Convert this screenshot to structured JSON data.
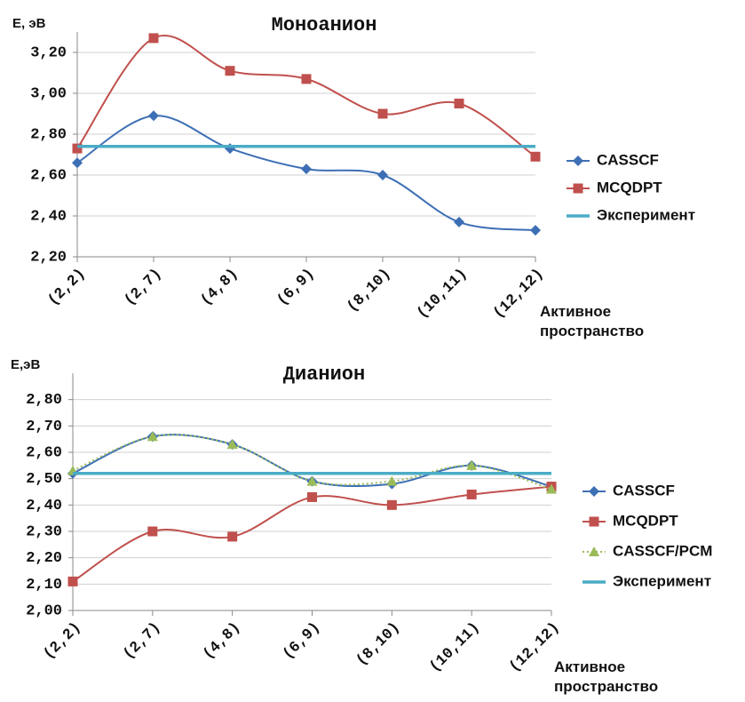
{
  "chart_data": [
    {
      "type": "line",
      "title": "Моноанион",
      "y_label": "E, эВ",
      "x_label": "Активное пространство",
      "smooth": true,
      "grid": true,
      "categories": [
        "(2,2)",
        "(2,7)",
        "(4,8)",
        "(6,9)",
        "(8,10)",
        "(10,11)",
        "(12,12)"
      ],
      "ylim": [
        2.2,
        3.3
      ],
      "yticks": [
        {
          "value": 2.2,
          "label": "2,20"
        },
        {
          "value": 2.4,
          "label": "2,40"
        },
        {
          "value": 2.6,
          "label": "2,60"
        },
        {
          "value": 2.8,
          "label": "2,80"
        },
        {
          "value": 3.0,
          "label": "3,00"
        },
        {
          "value": 3.2,
          "label": "3,20"
        }
      ],
      "series": [
        {
          "name": "CASSCF",
          "color": "#3d6fb5",
          "marker": "diamond",
          "values": [
            2.66,
            2.89,
            2.73,
            2.63,
            2.6,
            2.37,
            2.33
          ]
        },
        {
          "name": "MCQDPT",
          "color": "#c0504d",
          "marker": "square",
          "values": [
            2.73,
            3.27,
            3.11,
            3.07,
            2.9,
            2.95,
            2.69
          ]
        },
        {
          "name": "Эксперимент",
          "color": "#4bacc6",
          "marker": "none",
          "values": [
            2.74,
            2.74,
            2.74,
            2.74,
            2.74,
            2.74,
            2.74
          ]
        }
      ]
    },
    {
      "type": "line",
      "title": "Дианион",
      "y_label": "E,эВ",
      "x_label": "Активное пространство",
      "smooth": true,
      "grid": true,
      "categories": [
        "(2,2)",
        "(2,7)",
        "(4,8)",
        "(6,9)",
        "(8,10)",
        "(10,11)",
        "(12,12)"
      ],
      "ylim": [
        2.0,
        2.9
      ],
      "yticks": [
        {
          "value": 2.0,
          "label": "2,00"
        },
        {
          "value": 2.1,
          "label": "2,10"
        },
        {
          "value": 2.2,
          "label": "2,20"
        },
        {
          "value": 2.3,
          "label": "2,30"
        },
        {
          "value": 2.4,
          "label": "2,40"
        },
        {
          "value": 2.5,
          "label": "2,50"
        },
        {
          "value": 2.6,
          "label": "2,60"
        },
        {
          "value": 2.7,
          "label": "2,70"
        },
        {
          "value": 2.8,
          "label": "2,80"
        }
      ],
      "series": [
        {
          "name": "CASSCF",
          "color": "#3d6fb5",
          "marker": "diamond",
          "values": [
            2.52,
            2.66,
            2.63,
            2.49,
            2.48,
            2.55,
            2.47
          ]
        },
        {
          "name": "MCQDPT",
          "color": "#c0504d",
          "marker": "square",
          "values": [
            2.11,
            2.3,
            2.28,
            2.43,
            2.4,
            2.44,
            2.47
          ]
        },
        {
          "name": "CASSCF/PCM",
          "color": "#9bbb59",
          "marker": "triangle",
          "dashed": true,
          "values": [
            2.53,
            2.66,
            2.63,
            2.49,
            2.49,
            2.55,
            2.46
          ]
        },
        {
          "name": "Эксперимент",
          "color": "#4bacc6",
          "marker": "none",
          "values": [
            2.52,
            2.52,
            2.52,
            2.52,
            2.52,
            2.52,
            2.52
          ]
        }
      ]
    }
  ]
}
